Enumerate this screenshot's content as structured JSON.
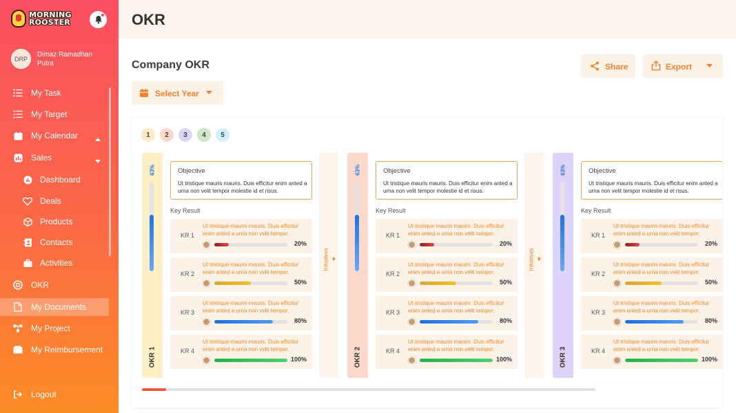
{
  "brand": {
    "line1": "MORNING",
    "line2": "ROOSTER"
  },
  "user": {
    "initials": "DRP",
    "name": "Dimaz Ramadhan Putra"
  },
  "menu": [
    {
      "label": "My Task",
      "icon": "list-icon"
    },
    {
      "label": "My Target",
      "icon": "checklist-icon"
    },
    {
      "label": "My Calendar",
      "icon": "calendar-icon"
    },
    {
      "label": "Sales",
      "icon": "chart-icon"
    },
    {
      "label": "Dashboard",
      "icon": "dashboard-icon"
    },
    {
      "label": "Deals",
      "icon": "handshake-icon"
    },
    {
      "label": "Products",
      "icon": "box-icon"
    },
    {
      "label": "Contacts",
      "icon": "contacts-icon"
    },
    {
      "label": "Activities",
      "icon": "briefcase-icon"
    },
    {
      "label": "OKR",
      "icon": "target-icon"
    },
    {
      "label": "My Documents",
      "icon": "document-icon"
    },
    {
      "label": "My Project",
      "icon": "project-icon"
    },
    {
      "label": "My Reimbursement",
      "icon": "wallet-icon"
    }
  ],
  "logout_label": "Logout",
  "header": {
    "title": "OKR"
  },
  "page": {
    "subtitle": "Company OKR",
    "share_label": "Share",
    "export_label": "Export",
    "select_year_label": "Select Year"
  },
  "pager": [
    "1",
    "2",
    "3",
    "4",
    "5"
  ],
  "pager_colors": [
    "#fdebc8",
    "#fbd9c9",
    "#ddd5f6",
    "#cfe7c4",
    "#d0f0f8"
  ],
  "okrs": [
    {
      "label": "OKR 1",
      "progress_label": "63%",
      "progress": 63,
      "strip_color": "#fdefc6",
      "objective_title": "Objective",
      "objective_text": "Ut tristique mauris mauris. Duis efficitur enim anted a urna non velit tempor molestie id et risus.",
      "key_result_heading": "Key Result",
      "initiatives_label": "Initiatives",
      "krs": [
        {
          "name": "KR 1",
          "text": "Ut tristique mauris mauris. Duis efficitur enim anted a urna non velit tempor.",
          "percent_label": "20%",
          "percent": 20
        },
        {
          "name": "KR 2",
          "text": "Ut tristique mauris mauris. Duis efficitur enim anted a urna non velit tempor.",
          "percent_label": "50%",
          "percent": 50
        },
        {
          "name": "KR 3",
          "text": "Ut tristique mauris mauris. Duis efficitur enim anted a urna non velit tempor.",
          "percent_label": "80%",
          "percent": 80
        },
        {
          "name": "KR 4",
          "text": "Ut tristique mauris mauris. Duis efficitur enim anted a urna non velit tempor.",
          "percent_label": "100%",
          "percent": 100
        }
      ]
    },
    {
      "label": "OKR 2",
      "progress_label": "63%",
      "progress": 63,
      "strip_color": "#fcd9cd",
      "objective_title": "Objective",
      "objective_text": "Ut tristique mauris mauris. Duis efficitur enim anted a urna non velit tempor molestie id et risus.",
      "key_result_heading": "Key Result",
      "initiatives_label": "Initiatives",
      "krs": [
        {
          "name": "KR 1",
          "text": "Ut tristique mauris mauris. Duis efficitur enim anted a urna non velit tempor.",
          "percent_label": "20%",
          "percent": 20
        },
        {
          "name": "KR 2",
          "text": "Ut tristique mauris mauris. Duis efficitur enim anted a urna non velit tempor.",
          "percent_label": "50%",
          "percent": 50
        },
        {
          "name": "KR 3",
          "text": "Ut tristique mauris mauris. Duis efficitur enim anted a urna non velit tempor.",
          "percent_label": "80%",
          "percent": 80
        },
        {
          "name": "KR 4",
          "text": "Ut tristique mauris mauris. Duis efficitur enim anted a urna non velit tempor.",
          "percent_label": "100%",
          "percent": 100
        }
      ]
    },
    {
      "label": "OKR 3",
      "progress_label": "63%",
      "progress": 63,
      "strip_color": "#ddd3fb",
      "objective_title": "Objective",
      "objective_text": "Ut tristique mauris mauris. Duis efficitur enim anted a urna non velit tempor molestie id et risus.",
      "key_result_heading": "Key Result",
      "initiatives_label": "",
      "krs": [
        {
          "name": "KR 1",
          "text": "Ut tristique mauris mauris. Duis efficitur enim anted a urna non velit tempor.",
          "percent_label": "20%",
          "percent": 20
        },
        {
          "name": "KR 2",
          "text": "Ut tristique mauris mauris. Duis efficitur enim anted a urna non velit tempor.",
          "percent_label": "50%",
          "percent": 50
        },
        {
          "name": "KR 3",
          "text": "Ut tristique mauris mauris. Duis efficitur enim anted a urna non velit tempor.",
          "percent_label": "80%",
          "percent": 80
        },
        {
          "name": "KR 4",
          "text": "Ut tristique mauris mauris. Duis efficitur enim anted a urna non velit tempor.",
          "percent_label": "100%",
          "percent": 100
        }
      ]
    }
  ],
  "kr_bar_colors": [
    "linear-gradient(90deg,#8a1f1f,#e04a4a)",
    "linear-gradient(90deg,#d4a83a,#f2c026)",
    "linear-gradient(90deg,#1d6fe0,#4d9cf5)",
    "linear-gradient(90deg,#25b24a,#4fd070)"
  ],
  "accent_color": "#f4822a"
}
